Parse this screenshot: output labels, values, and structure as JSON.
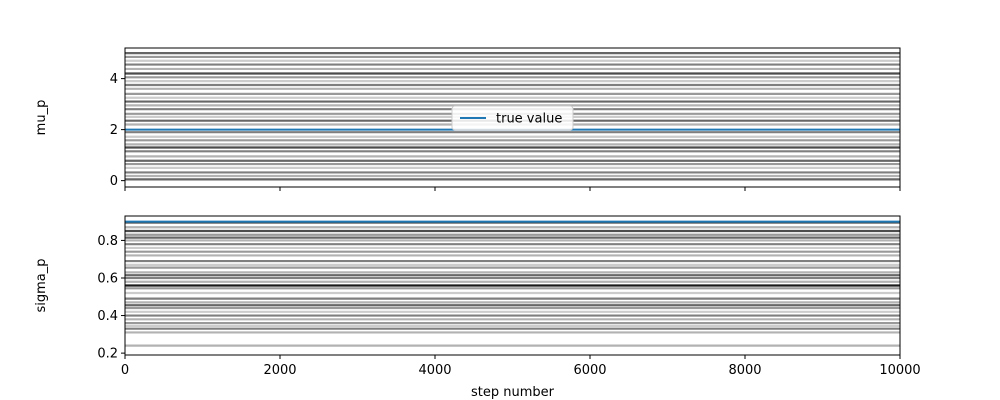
{
  "chart_data": [
    {
      "type": "line",
      "ylabel": "mu_p",
      "xlim": [
        0,
        10000
      ],
      "ylim": [
        -0.25,
        5.2
      ],
      "yticks": [
        0,
        2,
        4
      ],
      "true_value": 2.0,
      "true_value_color": "#1f77b4",
      "legend": {
        "label": "true value",
        "placement": "center"
      },
      "walkers": [
        0.05,
        0.18,
        0.32,
        0.5,
        0.65,
        0.78,
        0.95,
        1.15,
        1.3,
        1.42,
        1.58,
        1.72,
        1.9,
        2.2,
        2.35,
        2.5,
        2.62,
        2.8,
        2.95,
        3.1,
        3.25,
        3.4,
        3.6,
        3.75,
        3.9,
        4.05,
        4.2,
        4.38,
        4.55,
        4.7,
        4.85,
        5.0
      ],
      "walker_opacity": [
        0.6,
        0.3,
        0.5,
        0.2,
        0.4,
        0.6,
        0.3,
        0.5,
        0.7,
        0.3,
        0.4,
        0.2,
        0.5,
        0.3,
        0.6,
        0.2,
        0.4,
        0.5,
        0.3,
        0.6,
        0.2,
        0.4,
        0.3,
        0.5,
        0.2,
        0.4,
        0.7,
        0.3,
        0.5,
        0.2,
        0.4,
        0.6
      ]
    },
    {
      "type": "line",
      "ylabel": "sigma_p",
      "xlabel": "step number",
      "xlim": [
        0,
        10000
      ],
      "ylim": [
        0.19,
        0.93
      ],
      "yticks": [
        0.2,
        0.4,
        0.6,
        0.8
      ],
      "xticks": [
        0,
        2000,
        4000,
        6000,
        8000,
        10000
      ],
      "true_value": 0.9,
      "true_value_color": "#1f77b4",
      "walkers": [
        0.24,
        0.31,
        0.33,
        0.345,
        0.36,
        0.38,
        0.4,
        0.42,
        0.44,
        0.455,
        0.47,
        0.49,
        0.52,
        0.545,
        0.56,
        0.58,
        0.6,
        0.615,
        0.63,
        0.655,
        0.67,
        0.69,
        0.72,
        0.74,
        0.76,
        0.78,
        0.8,
        0.815,
        0.83,
        0.85,
        0.87,
        0.895
      ],
      "walker_opacity": [
        0.3,
        0.3,
        0.5,
        0.2,
        0.4,
        0.3,
        0.5,
        0.2,
        0.4,
        0.6,
        0.3,
        0.5,
        0.2,
        0.4,
        0.9,
        0.3,
        0.5,
        0.6,
        0.3,
        0.4,
        0.2,
        0.5,
        0.3,
        0.4,
        0.2,
        0.5,
        0.3,
        0.6,
        0.4,
        0.7,
        0.3,
        0.7
      ]
    }
  ]
}
